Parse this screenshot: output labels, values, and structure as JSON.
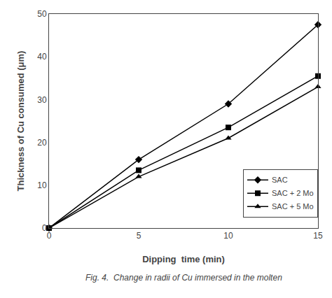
{
  "chart_data": {
    "type": "line",
    "x": [
      0,
      5,
      10,
      15
    ],
    "series": [
      {
        "name": "SAC",
        "color": "#000000",
        "marker": "diamond",
        "values": [
          0,
          16.0,
          29.0,
          47.5
        ]
      },
      {
        "name": "SAC + 2 Mo",
        "color": "#000000",
        "marker": "square",
        "values": [
          0,
          13.5,
          23.5,
          35.5
        ]
      },
      {
        "name": "SAC + 5 Mo",
        "color": "#000000",
        "marker": "triangle-up",
        "values": [
          0,
          12.0,
          21.0,
          33.0
        ]
      }
    ],
    "xlabel": "Dipping  time (min)",
    "ylabel": "Thickness of Cu consumed (μm)",
    "caption": "Fig. 4.  Change in radii of Cu immersed in the molten",
    "xlim": [
      0,
      15
    ],
    "ylim": [
      0,
      50
    ],
    "xticks": [
      0,
      5,
      10,
      15
    ],
    "yticks": [
      0,
      10,
      20,
      30,
      40,
      50
    ],
    "grid": false,
    "legend": "lower right"
  }
}
